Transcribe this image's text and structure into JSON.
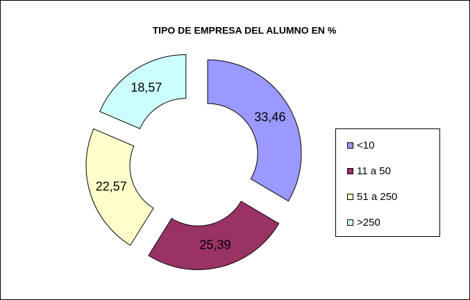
{
  "chart_data": {
    "type": "doughnut",
    "title": "TIPO DE EMPRESA DEL ALUMNO EN %",
    "categories": [
      "<10",
      "11 a 50",
      "51 a 250",
      ">250"
    ],
    "values": [
      33.46,
      25.39,
      22.57,
      18.57
    ],
    "value_labels": [
      "33,46",
      "25,39",
      "22,57",
      "18,57"
    ],
    "colors": [
      "#9999ff",
      "#993366",
      "#ffffcc",
      "#ccffff"
    ],
    "legend": "right"
  }
}
